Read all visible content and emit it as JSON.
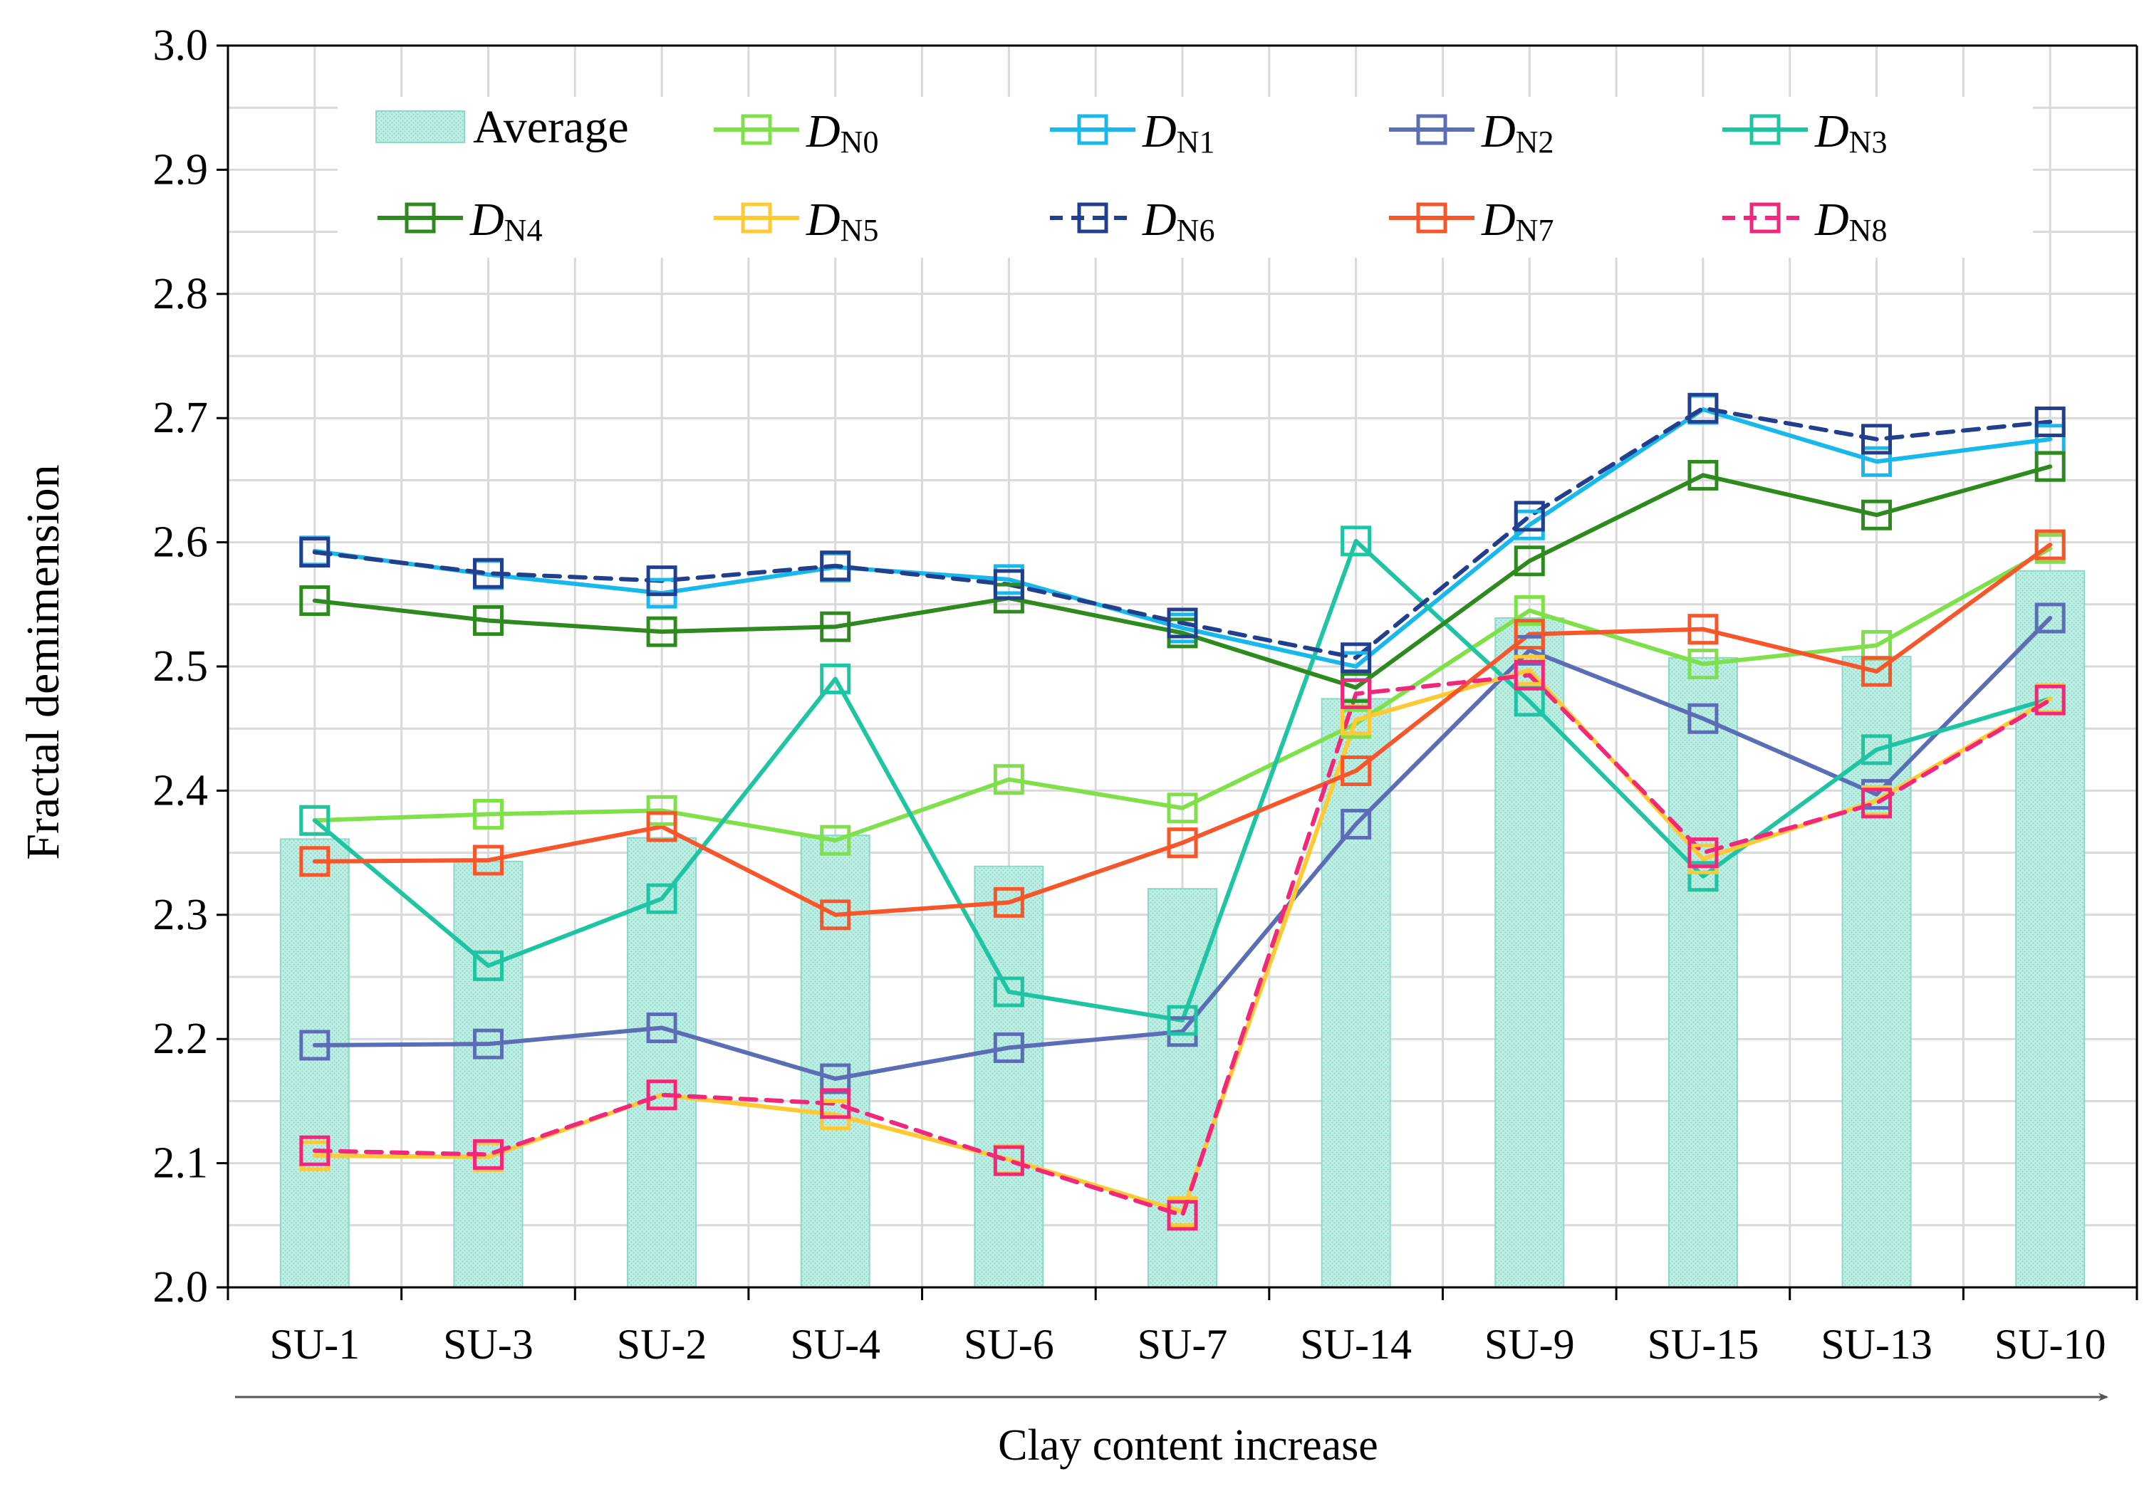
{
  "chart_data": {
    "type": "bar+line",
    "ylabel": "Fractal demimension",
    "xlabel": "Clay content increase",
    "ylim": [
      2.0,
      3.0
    ],
    "yticks": [
      "2.0",
      "2.1",
      "2.2",
      "2.3",
      "2.4",
      "2.5",
      "2.6",
      "2.7",
      "2.8",
      "2.9",
      "3.0"
    ],
    "grid": true,
    "legend_position": "top",
    "categories": [
      "SU-1",
      "SU-3",
      "SU-2",
      "SU-4",
      "SU-6",
      "SU-7",
      "SU-14",
      "SU-9",
      "SU-15",
      "SU-13",
      "SU-10"
    ],
    "bar_series": {
      "name": "Average",
      "color": "#9fe3d6",
      "values": [
        2.361,
        2.343,
        2.362,
        2.364,
        2.339,
        2.321,
        2.474,
        2.539,
        2.507,
        2.508,
        2.577
      ]
    },
    "series": [
      {
        "name": "D",
        "sub": "N0",
        "color": "#7fe04a",
        "dashed": false,
        "values": [
          2.376,
          2.381,
          2.384,
          2.36,
          2.409,
          2.386,
          2.454,
          2.545,
          2.502,
          2.517,
          2.595
        ]
      },
      {
        "name": "D",
        "sub": "N1",
        "color": "#19b8ec",
        "dashed": false,
        "values": [
          2.593,
          2.574,
          2.559,
          2.58,
          2.57,
          2.531,
          2.5,
          2.614,
          2.707,
          2.665,
          2.683
        ]
      },
      {
        "name": "D",
        "sub": "N2",
        "color": "#5b6eb5",
        "dashed": false,
        "values": [
          2.195,
          2.196,
          2.209,
          2.168,
          2.193,
          2.206,
          2.373,
          2.513,
          2.458,
          2.397,
          2.539
        ]
      },
      {
        "name": "D",
        "sub": "N3",
        "color": "#1fc4a2",
        "dashed": false,
        "values": [
          2.376,
          2.259,
          2.313,
          2.49,
          2.238,
          2.215,
          2.601,
          2.472,
          2.331,
          2.433,
          2.474
        ]
      },
      {
        "name": "D",
        "sub": "N4",
        "color": "#2e8a1f",
        "dashed": false,
        "values": [
          2.553,
          2.537,
          2.528,
          2.532,
          2.555,
          2.527,
          2.483,
          2.585,
          2.654,
          2.622,
          2.661
        ]
      },
      {
        "name": "D",
        "sub": "N5",
        "color": "#ffc933",
        "dashed": false,
        "values": [
          2.106,
          2.105,
          2.155,
          2.139,
          2.103,
          2.061,
          2.457,
          2.497,
          2.345,
          2.392,
          2.474
        ]
      },
      {
        "name": "D",
        "sub": "N6",
        "color": "#213f8c",
        "dashed": true,
        "values": [
          2.592,
          2.575,
          2.569,
          2.581,
          2.566,
          2.535,
          2.507,
          2.621,
          2.708,
          2.683,
          2.697
        ]
      },
      {
        "name": "D",
        "sub": "N7",
        "color": "#f7552a",
        "dashed": false,
        "values": [
          2.343,
          2.344,
          2.371,
          2.3,
          2.31,
          2.358,
          2.416,
          2.526,
          2.53,
          2.496,
          2.598
        ]
      },
      {
        "name": "D",
        "sub": "N8",
        "color": "#f2267a",
        "dashed": true,
        "values": [
          2.11,
          2.107,
          2.155,
          2.148,
          2.102,
          2.058,
          2.478,
          2.493,
          2.35,
          2.39,
          2.473
        ]
      }
    ]
  }
}
